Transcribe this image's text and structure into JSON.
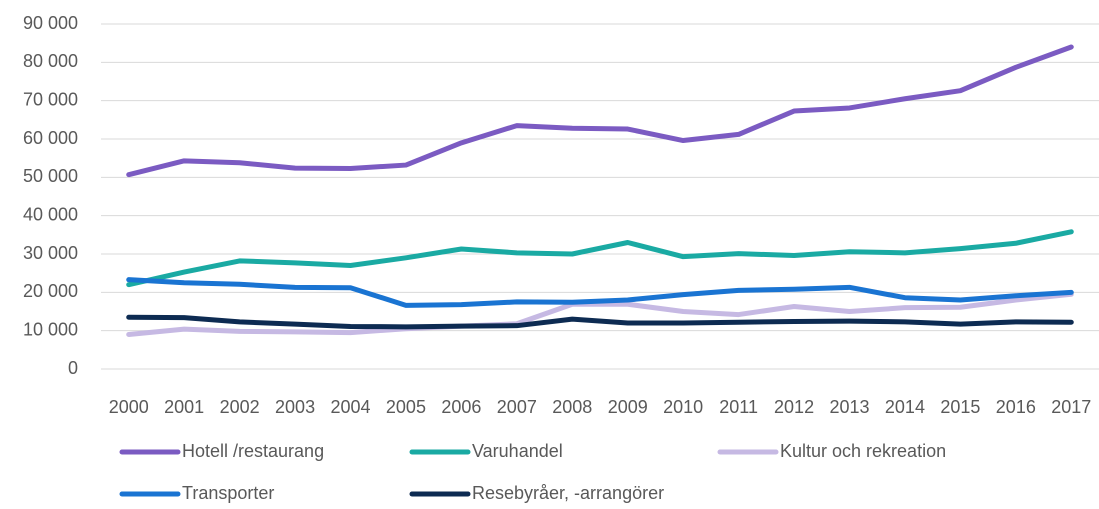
{
  "chart_data": {
    "type": "line",
    "categories": [
      "2000",
      "2001",
      "2002",
      "2003",
      "2004",
      "2005",
      "2006",
      "2007",
      "2008",
      "2009",
      "2010",
      "2011",
      "2012",
      "2013",
      "2014",
      "2015",
      "2016",
      "2017"
    ],
    "series": [
      {
        "name": "Hotell /restaurang",
        "color": "#7b5bc2",
        "values": [
          50700,
          54300,
          53800,
          52400,
          52300,
          53200,
          59000,
          63500,
          62800,
          62600,
          59600,
          61200,
          67300,
          68100,
          70500,
          72600,
          78700,
          84000
        ]
      },
      {
        "name": "Varuhandel",
        "color": "#1aaaa3",
        "values": [
          22000,
          25300,
          28200,
          27700,
          27000,
          29000,
          31300,
          30300,
          30000,
          33000,
          29300,
          30100,
          29600,
          30600,
          30300,
          31400,
          32800,
          35800
        ]
      },
      {
        "name": "Kultur och rekreation",
        "color": "#c6b9e3",
        "values": [
          9000,
          10400,
          9800,
          9700,
          9500,
          10500,
          11200,
          11800,
          16900,
          16900,
          15000,
          14200,
          16300,
          15000,
          16000,
          16100,
          18000,
          19500
        ]
      },
      {
        "name": "Transporter",
        "color": "#1a74d2",
        "values": [
          23300,
          22500,
          22100,
          21300,
          21200,
          16600,
          16800,
          17500,
          17400,
          18000,
          19400,
          20500,
          20800,
          21300,
          18600,
          18000,
          19100,
          20000
        ]
      },
      {
        "name": "Resebyråer, -arrangörer",
        "color": "#0d2b52",
        "values": [
          13500,
          13400,
          12300,
          11700,
          11100,
          11000,
          11200,
          11300,
          13000,
          12000,
          12000,
          12200,
          12400,
          12500,
          12300,
          11700,
          12300,
          12200
        ]
      }
    ],
    "ylim": [
      0,
      90000
    ],
    "yticks": [
      0,
      {
        "value": 10000,
        "label": "10 000"
      },
      {
        "value": 20000,
        "label": "20 000"
      },
      {
        "value": 30000,
        "label": "30 000"
      },
      {
        "value": 40000,
        "label": "40 000"
      },
      {
        "value": 50000,
        "label": "50 000"
      },
      {
        "value": 60000,
        "label": "60 000"
      },
      {
        "value": 70000,
        "label": "70 000"
      },
      {
        "value": 80000,
        "label": "80 000"
      },
      {
        "value": 90000,
        "label": "90 000"
      }
    ],
    "grid": true,
    "legend": "bottom"
  }
}
